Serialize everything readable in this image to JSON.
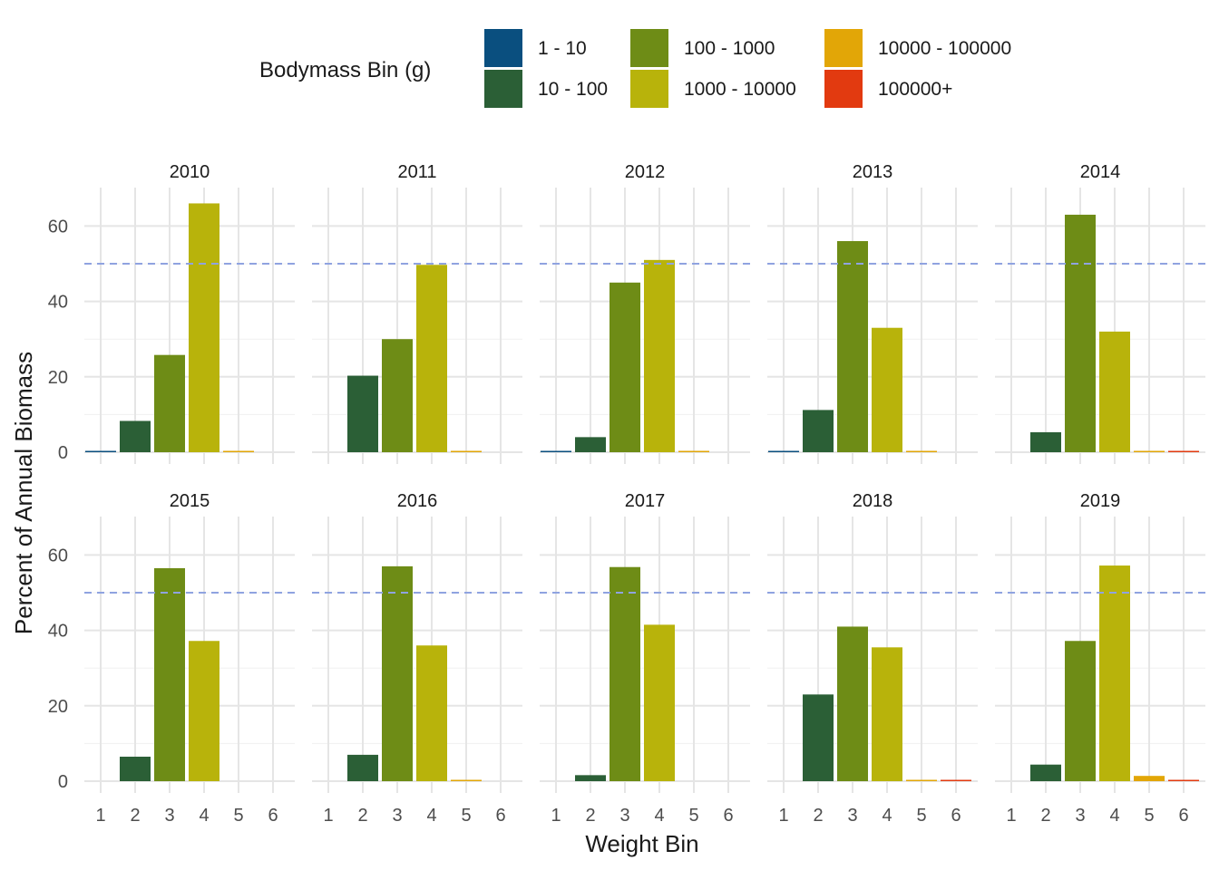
{
  "chart_data": {
    "type": "bar",
    "xlabel": "Weight Bin",
    "ylabel": "Percent of Annual Biomass",
    "ylim": [
      0,
      69
    ],
    "y_ticks": [
      0,
      20,
      40,
      60
    ],
    "categories": [
      "1",
      "2",
      "3",
      "4",
      "5",
      "6"
    ],
    "grid": true,
    "reference_line": {
      "y": 50,
      "style": "dashed",
      "color": "#8fa3e0"
    },
    "legend": {
      "title": "Bodymass Bin (g)",
      "placement": "top",
      "items": [
        {
          "label": "1 - 10",
          "color": "#0a4f7f"
        },
        {
          "label": "10 - 100",
          "color": "#2b5f36"
        },
        {
          "label": "100 - 1000",
          "color": "#6e8c16"
        },
        {
          "label": "1000 - 10000",
          "color": "#b8b30b"
        },
        {
          "label": "10000 - 100000",
          "color": "#e2a607"
        },
        {
          "label": "100000+",
          "color": "#e23a10"
        }
      ]
    },
    "panels": [
      {
        "year": "2010",
        "values": [
          0.2,
          8.3,
          25.8,
          66.0,
          0.3,
          0
        ]
      },
      {
        "year": "2011",
        "values": [
          0,
          20.3,
          30.0,
          49.7,
          0.2,
          0
        ]
      },
      {
        "year": "2012",
        "values": [
          0.2,
          4.0,
          45.0,
          51.0,
          0.2,
          0
        ]
      },
      {
        "year": "2013",
        "values": [
          0.2,
          11.2,
          56.0,
          33.0,
          0.2,
          0
        ]
      },
      {
        "year": "2014",
        "values": [
          0,
          5.3,
          63.0,
          32.0,
          0.2,
          0.2
        ]
      },
      {
        "year": "2015",
        "values": [
          0,
          6.5,
          56.5,
          37.2,
          0,
          0
        ]
      },
      {
        "year": "2016",
        "values": [
          0,
          7.0,
          57.0,
          36.0,
          0.1,
          0
        ]
      },
      {
        "year": "2017",
        "values": [
          0,
          1.6,
          56.8,
          41.5,
          0,
          0
        ]
      },
      {
        "year": "2018",
        "values": [
          0,
          23.0,
          41.0,
          35.5,
          0.3,
          0.2
        ]
      },
      {
        "year": "2019",
        "values": [
          0,
          4.4,
          37.2,
          57.2,
          1.4,
          0.1
        ]
      }
    ]
  }
}
